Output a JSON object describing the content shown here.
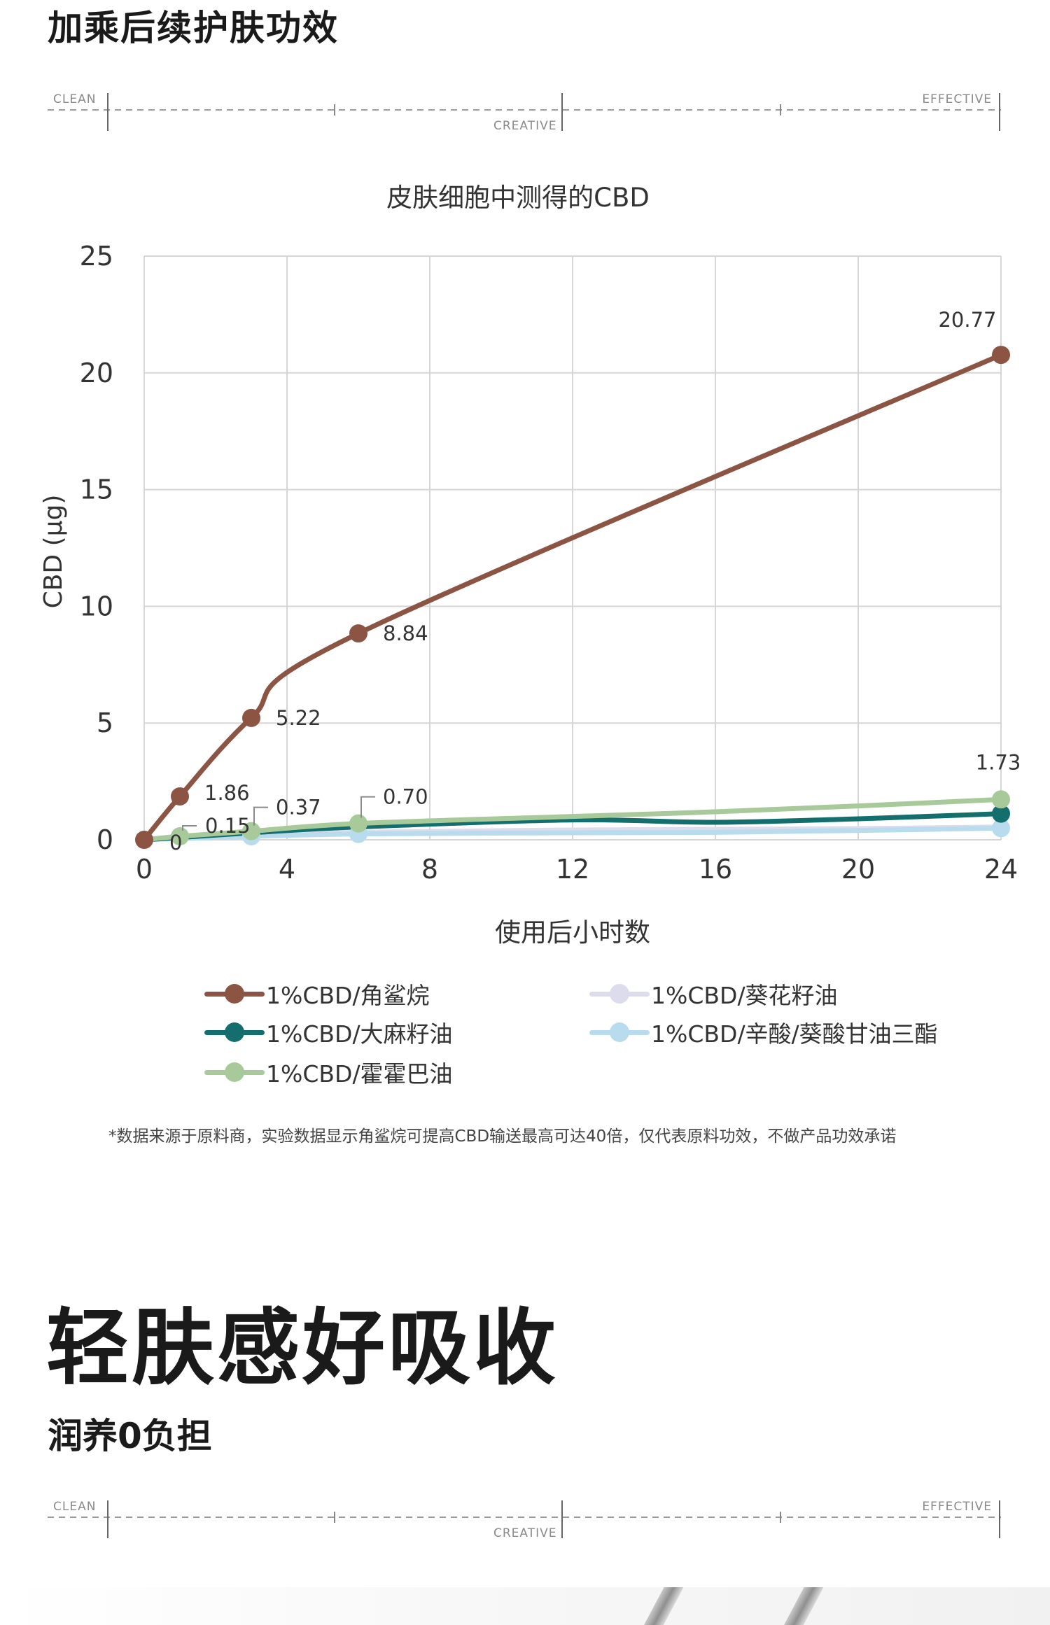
{
  "header": {
    "title": "加乘后续护肤功效"
  },
  "divider": {
    "left": "CLEAN",
    "center": "CREATIVE",
    "right": "EFFECTIVE"
  },
  "chart_data": {
    "type": "line",
    "title": "皮肤细胞中测得的CBD",
    "xlabel": "使用后小时数",
    "ylabel": "CBD (μg)",
    "xlim": [
      0,
      24
    ],
    "ylim": [
      0,
      25
    ],
    "x_ticks": [
      "0",
      "4",
      "8",
      "12",
      "16",
      "20",
      "24"
    ],
    "y_ticks": [
      "0",
      "5",
      "10",
      "15",
      "20",
      "25"
    ],
    "grid": true,
    "legend_position": "bottom",
    "series": [
      {
        "name": "1%CBD/角鲨烷",
        "color": "#8b5443",
        "x": [
          0,
          1,
          3,
          6,
          24
        ],
        "y": [
          0,
          1.86,
          5.22,
          8.84,
          20.77
        ],
        "markers": [
          0,
          1,
          3,
          6,
          24
        ]
      },
      {
        "name": "1%CBD/葵花籽油",
        "color": "#dcdcec",
        "x": [
          0,
          1,
          3,
          6,
          12,
          16,
          20,
          24
        ],
        "y": [
          0,
          0.08,
          0.2,
          0.32,
          0.42,
          0.45,
          0.48,
          0.55
        ],
        "markers": []
      },
      {
        "name": "1%CBD/大麻籽油",
        "color": "#146e6e",
        "x": [
          0,
          1,
          3,
          6,
          12,
          16,
          20,
          24
        ],
        "y": [
          0,
          0.1,
          0.3,
          0.55,
          0.85,
          0.75,
          0.9,
          1.12
        ],
        "markers": [
          24
        ]
      },
      {
        "name": "1%CBD/辛酸/葵酸甘油三酯",
        "color": "#b9dbee",
        "x": [
          0,
          1,
          3,
          6,
          12,
          16,
          20,
          24
        ],
        "y": [
          0,
          0.05,
          0.15,
          0.25,
          0.3,
          0.32,
          0.4,
          0.5
        ],
        "markers": [
          3,
          6,
          24
        ]
      },
      {
        "name": "1%CBD/霍霍巴油",
        "color": "#a8ca9b",
        "x": [
          0,
          1,
          3,
          6,
          12,
          16,
          20,
          24
        ],
        "y": [
          0,
          0.15,
          0.37,
          0.7,
          1.0,
          1.2,
          1.45,
          1.73
        ],
        "markers": [
          1,
          3,
          6,
          24
        ]
      }
    ],
    "data_labels": [
      "1.86",
      "5.22",
      "8.84",
      "20.77",
      "0",
      "0.15",
      "0.37",
      "0.70",
      "1.73"
    ]
  },
  "footnote": "*数据来源于原料商，实验数据显示角鲨烷可提高CBD输送最高可达40倍，仅代表原料功效，不做产品功效承诺",
  "section2": {
    "title": "轻肤感好吸收",
    "subtitle": "润养0负担"
  }
}
